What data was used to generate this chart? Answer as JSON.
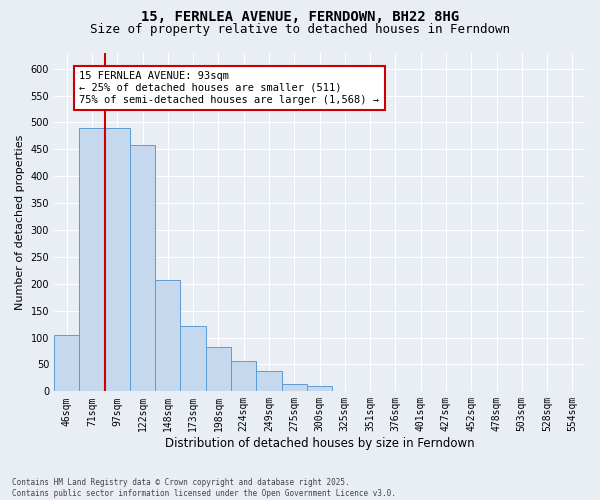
{
  "title": "15, FERNLEA AVENUE, FERNDOWN, BH22 8HG",
  "subtitle": "Size of property relative to detached houses in Ferndown",
  "xlabel": "Distribution of detached houses by size in Ferndown",
  "ylabel": "Number of detached properties",
  "footer_line1": "Contains HM Land Registry data © Crown copyright and database right 2025.",
  "footer_line2": "Contains public sector information licensed under the Open Government Licence v3.0.",
  "categories": [
    "46sqm",
    "71sqm",
    "97sqm",
    "122sqm",
    "148sqm",
    "173sqm",
    "198sqm",
    "224sqm",
    "249sqm",
    "275sqm",
    "300sqm",
    "325sqm",
    "351sqm",
    "376sqm",
    "401sqm",
    "427sqm",
    "452sqm",
    "478sqm",
    "503sqm",
    "528sqm",
    "554sqm"
  ],
  "values": [
    105,
    490,
    490,
    458,
    207,
    122,
    82,
    57,
    38,
    13,
    10,
    0,
    0,
    0,
    0,
    0,
    0,
    0,
    0,
    0,
    0
  ],
  "bar_color": "#c5d8ee",
  "bar_edge_color": "#5b9bd5",
  "vline_color": "#cc0000",
  "vline_position": 1.5,
  "annotation_text": "15 FERNLEA AVENUE: 93sqm\n← 25% of detached houses are smaller (511)\n75% of semi-detached houses are larger (1,568) →",
  "annotation_box_color": "#ffffff",
  "annotation_box_edge": "#cc0000",
  "ylim": [
    0,
    630
  ],
  "yticks": [
    0,
    50,
    100,
    150,
    200,
    250,
    300,
    350,
    400,
    450,
    500,
    550,
    600
  ],
  "background_color": "#e8eef4",
  "plot_bg_color": "#e8eef4",
  "title_fontsize": 10,
  "subtitle_fontsize": 9,
  "tick_fontsize": 7,
  "xlabel_fontsize": 8.5,
  "ylabel_fontsize": 8,
  "footer_fontsize": 5.5,
  "ann_fontsize": 7.5
}
